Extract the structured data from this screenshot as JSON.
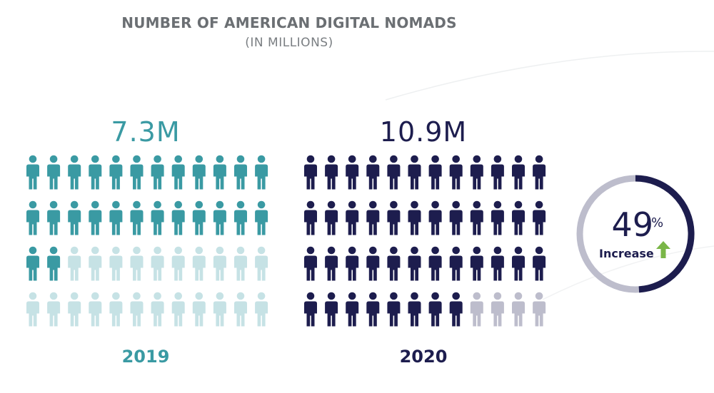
{
  "chart_data": {
    "type": "pictogram",
    "title": "NUMBER OF AMERICAN DIGITAL NOMADS",
    "subtitle": "(IN MILLIONS)",
    "groups": [
      {
        "year": "2019",
        "value": 7.3,
        "value_label": "7.3M",
        "icons_total": 48,
        "icons_filled": 26,
        "color": "#3a9aa3",
        "empty_color": "#c6e2e5"
      },
      {
        "year": "2020",
        "value": 10.9,
        "value_label": "10.9M",
        "icons_total": 48,
        "icons_filled": 44,
        "color": "#1d1d4e",
        "empty_color": "#bdbdcc"
      }
    ],
    "increase": {
      "value": 49,
      "value_label": "49",
      "unit": "%",
      "label": "Increase",
      "ring_color": "#1d1d4e",
      "ring_track_color": "#bdbdcc",
      "arrow_color": "#7ab648",
      "icon": "up-arrow-icon"
    }
  },
  "icon": "person-icon"
}
